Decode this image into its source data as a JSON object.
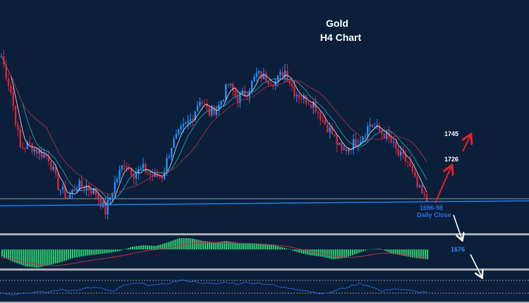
{
  "chart_data": {
    "type": "candlestick",
    "title": "Gold",
    "subtitle": "H4 Chart",
    "xlabel": "",
    "ylabel": "",
    "close": [
      1801,
      1776,
      1736,
      1738,
      1733,
      1729,
      1709,
      1701,
      1709,
      1709,
      1704,
      1691,
      1711,
      1726,
      1718,
      1721,
      1716,
      1716,
      1738,
      1748,
      1756,
      1771,
      1761,
      1766,
      1781,
      1771,
      1776,
      1788,
      1786,
      1783,
      1791,
      1776,
      1771,
      1768,
      1756,
      1746,
      1733,
      1738,
      1743,
      1753,
      1748,
      1743,
      1731,
      1726,
      1708,
      1698
    ],
    "support_line": 1697,
    "annotations": [
      {
        "text": "1745",
        "color": "#ffffff"
      },
      {
        "text": "1726",
        "color": "#ffffff"
      },
      {
        "text": "1696-98",
        "color": "#2f6fe0"
      },
      {
        "text": "Daily Close",
        "color": "#2f6fe0"
      },
      {
        "text": "1676",
        "color": "#2f8cf0"
      }
    ],
    "macd_histogram": [
      -10,
      -18,
      -24,
      -26,
      -22,
      -18,
      -12,
      -9,
      -7,
      -5,
      -2,
      4,
      6,
      5,
      10,
      16,
      16,
      12,
      10,
      12,
      9,
      9,
      8,
      6,
      2,
      -4,
      -8,
      -10,
      -14,
      -12,
      -6,
      0,
      1,
      -6,
      -9,
      -12,
      -14
    ],
    "oscillator": [
      32,
      27,
      30,
      33,
      32,
      40,
      38,
      42,
      48,
      44,
      35,
      55,
      60,
      58,
      55,
      62,
      70,
      68,
      62,
      58,
      64,
      60,
      63,
      62,
      58,
      48,
      45,
      40,
      33,
      28,
      40,
      50,
      60,
      52,
      35,
      45,
      40,
      35,
      33
    ],
    "oscillator_levels": [
      70,
      30
    ],
    "colors": {
      "background": "#0b1f3a",
      "bull": "#1e90ff",
      "bear": "#e0203a",
      "macd": "#2ecc71",
      "signal": "#c0304a",
      "osc": "#2a5fd0",
      "arrow_up": "#e8202a",
      "arrow_down": "#ffffff"
    }
  }
}
